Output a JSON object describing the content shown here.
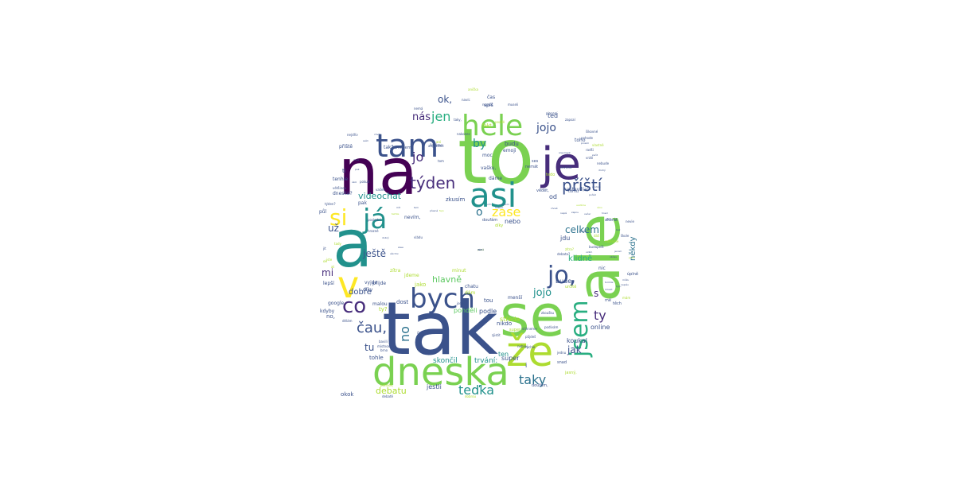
{
  "palette": {
    "dark_purple": "#440154",
    "indigo": "#472d7b",
    "blue": "#3b528b",
    "steel": "#2c728e",
    "teal": "#21918c",
    "sea": "#28ae80",
    "green": "#5ec962",
    "lime": "#addc30",
    "yellow": "#fde725"
  },
  "words": [
    {
      "text": "to",
      "size": 96,
      "color": "#7ad151"
    },
    {
      "text": "tak",
      "size": 92,
      "color": "#3b528b"
    },
    {
      "text": "na",
      "size": 80,
      "color": "#440154"
    },
    {
      "text": "a",
      "size": 82,
      "color": "#21918c"
    },
    {
      "text": "ale",
      "size": 74,
      "color": "#7ad151"
    },
    {
      "text": "se",
      "size": 72,
      "color": "#7ad151"
    },
    {
      "text": "je",
      "size": 56,
      "color": "#472d7b"
    },
    {
      "text": "že",
      "size": 52,
      "color": "#addc30"
    },
    {
      "text": "dneska",
      "size": 48,
      "color": "#7ad151"
    },
    {
      "text": "tam",
      "size": 40,
      "color": "#3b528b"
    },
    {
      "text": "asi",
      "size": 42,
      "color": "#21918c"
    },
    {
      "text": "v",
      "size": 46,
      "color": "#fde725"
    },
    {
      "text": "hele",
      "size": 36,
      "color": "#7ad151"
    },
    {
      "text": "bych",
      "size": 34,
      "color": "#3b528b"
    },
    {
      "text": "já",
      "size": 34,
      "color": "#21918c"
    },
    {
      "text": "jsem",
      "size": 30,
      "color": "#28ae80"
    },
    {
      "text": "jo,",
      "size": 30,
      "color": "#3b528b"
    },
    {
      "text": "si",
      "size": 28,
      "color": "#fde725"
    },
    {
      "text": "co",
      "size": 26,
      "color": "#472d7b"
    },
    {
      "text": "týden",
      "size": 20,
      "color": "#472d7b"
    },
    {
      "text": "příští",
      "size": 20,
      "color": "#3b528b"
    },
    {
      "text": "čau,",
      "size": 18,
      "color": "#3b528b"
    },
    {
      "text": "teďka",
      "size": 16,
      "color": "#21918c"
    },
    {
      "text": "taky",
      "size": 16,
      "color": "#2c728e"
    },
    {
      "text": "zase",
      "size": 16,
      "color": "#fde725"
    },
    {
      "text": "jen",
      "size": 16,
      "color": "#28ae80"
    },
    {
      "text": "jo",
      "size": 16,
      "color": "#472d7b"
    },
    {
      "text": "jojo",
      "size": 14,
      "color": "#3b528b"
    },
    {
      "text": "ty",
      "size": 16,
      "color": "#472d7b"
    },
    {
      "text": "no",
      "size": 16,
      "color": "#2c728e"
    },
    {
      "text": "o",
      "size": 14,
      "color": "#2c728e"
    },
    {
      "text": "by",
      "size": 14,
      "color": "#21918c"
    },
    {
      "text": "jojo",
      "size": 13,
      "color": "#21918c"
    },
    {
      "text": "nás",
      "size": 13,
      "color": "#472d7b"
    },
    {
      "text": "ok,",
      "size": 12,
      "color": "#3b528b"
    },
    {
      "text": "celkem",
      "size": 12,
      "color": "#2c728e"
    },
    {
      "text": "ještě",
      "size": 12,
      "color": "#3b528b"
    },
    {
      "text": "už",
      "size": 12,
      "color": "#3b528b"
    },
    {
      "text": "mi",
      "size": 12,
      "color": "#472d7b"
    },
    {
      "text": "tu",
      "size": 12,
      "color": "#3b528b"
    },
    {
      "text": "jak",
      "size": 12,
      "color": "#3b528b"
    },
    {
      "text": "dobře",
      "size": 10,
      "color": "#3b528b"
    },
    {
      "text": "hlavně",
      "size": 11,
      "color": "#5ec962"
    },
    {
      "text": "videochat",
      "size": 11,
      "color": "#21918c"
    },
    {
      "text": "debatu",
      "size": 11,
      "color": "#addc30"
    },
    {
      "text": "skončil",
      "size": 9,
      "color": "#21918c"
    },
    {
      "text": "trvání:",
      "size": 9,
      "color": "#21918c"
    },
    {
      "text": "klidně",
      "size": 10,
      "color": "#28ae80"
    },
    {
      "text": "někdy",
      "size": 10,
      "color": "#2c728e"
    },
    {
      "text": "s",
      "size": 12,
      "color": "#472d7b"
    },
    {
      "text": "ted",
      "size": 8,
      "color": "#3b528b"
    },
    {
      "text": "od",
      "size": 8,
      "color": "#3b528b"
    },
    {
      "text": "nebo",
      "size": 8,
      "color": "#3b528b"
    },
    {
      "text": "jdu",
      "size": 8,
      "color": "#3b528b"
    },
    {
      "text": "bude",
      "size": 8,
      "color": "#3b528b"
    },
    {
      "text": "online",
      "size": 8,
      "color": "#3b528b"
    },
    {
      "text": "koukal",
      "size": 8,
      "color": "#3b528b"
    },
    {
      "text": "super",
      "size": 8,
      "color": "#3b528b"
    },
    {
      "text": "ten",
      "size": 8,
      "color": "#21918c"
    },
    {
      "text": "i",
      "size": 8,
      "color": "#3b528b"
    },
    {
      "text": "nikdo",
      "size": 7,
      "color": "#3b528b"
    },
    {
      "text": "podle",
      "size": 8,
      "color": "#3b528b"
    },
    {
      "text": "ponděli",
      "size": 8,
      "color": "#5ec962"
    },
    {
      "text": "jako",
      "size": 7,
      "color": "#addc30"
    },
    {
      "text": "tou",
      "size": 7,
      "color": "#3b528b"
    },
    {
      "text": "menší",
      "size": 6,
      "color": "#3b528b"
    },
    {
      "text": "dám",
      "size": 6,
      "color": "#addc30"
    },
    {
      "text": "minut",
      "size": 6,
      "color": "#addc30"
    },
    {
      "text": "chatu",
      "size": 6,
      "color": "#3b528b"
    },
    {
      "text": "středa",
      "size": 8,
      "color": "#addc30"
    },
    {
      "text": "jestli",
      "size": 8,
      "color": "#3b528b"
    },
    {
      "text": "okok",
      "size": 7,
      "color": "#3b528b"
    },
    {
      "text": "tohle",
      "size": 7,
      "color": "#3b528b"
    },
    {
      "text": "lepší",
      "size": 6,
      "color": "#3b528b"
    },
    {
      "text": "kdyby",
      "size": 6,
      "color": "#3b528b"
    },
    {
      "text": "vyjde",
      "size": 6,
      "color": "#3b528b"
    },
    {
      "text": "díky",
      "size": 6,
      "color": "#3b528b"
    },
    {
      "text": "google",
      "size": 6,
      "color": "#3b528b"
    },
    {
      "text": "no,",
      "size": 7,
      "color": "#3b528b"
    },
    {
      "text": "malou",
      "size": 6,
      "color": "#3b528b"
    },
    {
      "text": "ty?",
      "size": 7,
      "color": "#addc30"
    },
    {
      "text": "dost",
      "size": 7,
      "color": "#3b528b"
    },
    {
      "text": "přijde",
      "size": 6,
      "color": "#3b528b"
    },
    {
      "text": "zítra",
      "size": 6,
      "color": "#addc30"
    },
    {
      "text": "jdeme",
      "size": 6,
      "color": "#addc30"
    },
    {
      "text": "nevím,",
      "size": 6,
      "color": "#3b528b"
    },
    {
      "text": "zkusím",
      "size": 7,
      "color": "#3b528b"
    },
    {
      "text": "pak",
      "size": 6,
      "color": "#3b528b"
    },
    {
      "text": "dneska?",
      "size": 6,
      "color": "#3b528b"
    },
    {
      "text": "půl",
      "size": 6,
      "color": "#3b528b"
    },
    {
      "text": "ti",
      "size": 7,
      "color": "#3b528b"
    },
    {
      "text": "tenhle",
      "size": 6,
      "color": "#3b528b"
    },
    {
      "text": "příště",
      "size": 6,
      "color": "#3b528b"
    },
    {
      "text": "takže",
      "size": 6,
      "color": "#3b528b"
    },
    {
      "text": "můžem",
      "size": 5,
      "color": "#3b528b"
    },
    {
      "text": "budu",
      "size": 7,
      "color": "#3b528b"
    },
    {
      "text": "emoji",
      "size": 6,
      "color": "#3b528b"
    },
    {
      "text": "moc",
      "size": 6,
      "color": "#3b528b"
    },
    {
      "text": "čas",
      "size": 6,
      "color": "#3b528b"
    },
    {
      "text": "fakt",
      "size": 6,
      "color": "#addc30"
    },
    {
      "text": "spíš",
      "size": 6,
      "color": "#3b528b"
    },
    {
      "text": "vašku,",
      "size": 6,
      "color": "#3b528b"
    },
    {
      "text": "dáme",
      "size": 6,
      "color": "#3b528b"
    },
    {
      "text": "tedo",
      "size": 5,
      "color": "#addc30"
    },
    {
      "text": "vědět,",
      "size": 5,
      "color": "#3b528b"
    },
    {
      "text": "tomu",
      "size": 5,
      "color": "#3b528b"
    },
    {
      "text": "nastavil(a)",
      "size": 6,
      "color": "#3b528b"
    },
    {
      "text": "toho",
      "size": 6,
      "color": "#3b528b"
    },
    {
      "text": "akorát",
      "size": 5,
      "color": "#3b528b"
    },
    {
      "text": "nic",
      "size": 6,
      "color": "#3b528b"
    },
    {
      "text": "úplně",
      "size": 5,
      "color": "#3b528b"
    },
    {
      "text": "těch",
      "size": 5,
      "color": "#3b528b"
    },
    {
      "text": "mě",
      "size": 5,
      "color": "#3b528b"
    },
    {
      "text": "určitě",
      "size": 5,
      "color": "#addc30"
    },
    {
      "text": "jasný,",
      "size": 5,
      "color": "#addc30"
    },
    {
      "text": "doufám,",
      "size": 5,
      "color": "#3b528b"
    },
    {
      "text": "snad",
      "size": 5,
      "color": "#3b528b"
    },
    {
      "text": "ses",
      "size": 5,
      "color": "#3b528b"
    },
    {
      "text": "nemát",
      "size": 5,
      "color": "#3b528b"
    },
    {
      "text": "díky",
      "size": 5,
      "color": "#addc30"
    },
    {
      "text": "super",
      "size": 5,
      "color": "#addc30"
    },
    {
      "text": "doufám",
      "size": 5,
      "color": "#3b528b"
    },
    {
      "text": "debata?",
      "size": 4,
      "color": "#3b528b"
    },
    {
      "text": "budapešt",
      "size": 4,
      "color": "#3b528b"
    },
    {
      "text": "nevie",
      "size": 4,
      "color": "#3b528b"
    },
    {
      "text": "škole",
      "size": 4,
      "color": "#3b528b"
    },
    {
      "text": "mám",
      "size": 4,
      "color": "#addc30"
    },
    {
      "text": "zítra?",
      "size": 4,
      "color": "#addc30"
    },
    {
      "text": "dáš",
      "size": 4,
      "color": "#addc30"
    },
    {
      "text": "můžeme",
      "size": 4,
      "color": "#addc30"
    },
    {
      "text": "pozdě",
      "size": 4,
      "color": "#addc30"
    },
    {
      "text": "ani",
      "size": 4,
      "color": "#addc30"
    },
    {
      "text": "anglictině",
      "size": 4,
      "color": "#3b528b"
    },
    {
      "text": "tom",
      "size": 4,
      "color": "#3b528b"
    },
    {
      "text": "nebude",
      "size": 4,
      "color": "#3b528b"
    },
    {
      "text": "zapsal",
      "size": 4,
      "color": "#3b528b"
    },
    {
      "text": "šikovné",
      "size": 4,
      "color": "#3b528b"
    },
    {
      "text": "pohode",
      "size": 4,
      "color": "#3b528b"
    },
    {
      "text": "navíc",
      "size": 4,
      "color": "#3b528b"
    },
    {
      "text": "taky,",
      "size": 4,
      "color": "#3b528b"
    },
    {
      "text": "nakonec",
      "size": 4,
      "color": "#3b528b"
    },
    {
      "text": "poslední",
      "size": 4,
      "color": "#3b528b"
    },
    {
      "text": "hrozně",
      "size": 4,
      "color": "#3b528b"
    },
    {
      "text": "vrátí",
      "size": 4,
      "color": "#3b528b"
    },
    {
      "text": "zavolat",
      "size": 4,
      "color": "#3b528b"
    },
    {
      "text": "většinou",
      "size": 4,
      "color": "#3b528b"
    },
    {
      "text": "dělám",
      "size": 4,
      "color": "#3b528b"
    },
    {
      "text": "bavili",
      "size": 4,
      "color": "#3b528b"
    },
    {
      "text": "místnost",
      "size": 4,
      "color": "#3b528b"
    },
    {
      "text": "brno",
      "size": 4,
      "color": "#3b528b"
    },
    {
      "text": "čekáme",
      "size": 4,
      "color": "#3b528b"
    },
    {
      "text": "museli",
      "size": 4,
      "color": "#3b528b"
    },
    {
      "text": "placení",
      "size": 4,
      "color": "#3b528b"
    },
    {
      "text": "napsal",
      "size": 4,
      "color": "#3b528b"
    },
    {
      "text": "vládu",
      "size": 4,
      "color": "#3b528b"
    },
    {
      "text": "pohodě,",
      "size": 4,
      "color": "#addc30"
    },
    {
      "text": "jsem,",
      "size": 4,
      "color": "#3b528b"
    },
    {
      "text": "zjistit",
      "size": 4,
      "color": "#3b528b"
    },
    {
      "text": "stihneme",
      "size": 4,
      "color": "#3b528b"
    },
    {
      "text": "zkoušku",
      "size": 4,
      "color": "#3b528b"
    },
    {
      "text": "podívám",
      "size": 4,
      "color": "#3b528b"
    },
    {
      "text": "půjdeš",
      "size": 4,
      "color": "#3b528b"
    },
    {
      "text": "rychle",
      "size": 4,
      "color": "#3b528b"
    },
    {
      "text": "jednu",
      "size": 4,
      "color": "#3b528b"
    },
    {
      "text": "debatě",
      "size": 4,
      "color": "#3b528b"
    },
    {
      "text": "dobrou",
      "size": 4,
      "color": "#addc30"
    },
    {
      "text": "nebavi,",
      "size": 4,
      "color": "#3b528b"
    },
    {
      "text": "čeká",
      "size": 4,
      "color": "#3b528b"
    },
    {
      "text": "vašek",
      "size": 4,
      "color": "#3b528b"
    },
    {
      "text": "pokud",
      "size": 4,
      "color": "#3b528b"
    },
    {
      "text": "tady",
      "size": 4,
      "color": "#addc30"
    },
    {
      "text": "jít",
      "size": 4,
      "color": "#3b528b"
    },
    {
      "text": "ok",
      "size": 4,
      "color": "#addc30"
    },
    {
      "text": "jste",
      "size": 4,
      "color": "#addc30"
    },
    {
      "text": "at",
      "size": 4,
      "color": "#addc30"
    },
    {
      "text": "týden?",
      "size": 4,
      "color": "#3b528b"
    },
    {
      "text": "nemá",
      "size": 4,
      "color": "#3b528b"
    },
    {
      "text": "nejdřív",
      "size": 4,
      "color": "#3b528b"
    },
    {
      "text": "anička",
      "size": 4,
      "color": "#addc30"
    },
    {
      "text": "radši",
      "size": 4,
      "color": "#3b528b"
    },
    {
      "text": "vlastně",
      "size": 4,
      "color": "#addc30"
    },
    {
      "text": "argument",
      "size": 3,
      "color": "#3b528b"
    },
    {
      "text": "druhou",
      "size": 3,
      "color": "#3b528b"
    },
    {
      "text": "druhý",
      "size": 3,
      "color": "#3b528b"
    },
    {
      "text": "tomhle",
      "size": 3,
      "color": "#3b528b"
    },
    {
      "text": "můžu",
      "size": 3,
      "color": "#3b528b"
    },
    {
      "text": "napišu",
      "size": 3,
      "color": "#3b528b"
    },
    {
      "text": "tyjo,",
      "size": 3,
      "color": "#3b528b"
    },
    {
      "text": "prosím",
      "size": 3,
      "color": "#3b528b"
    },
    {
      "text": "začít",
      "size": 3,
      "color": "#3b528b"
    },
    {
      "text": "pořád",
      "size": 3,
      "color": "#3b528b"
    },
    {
      "text": "hned",
      "size": 3,
      "color": "#3b528b"
    },
    {
      "text": "prej",
      "size": 3,
      "color": "#3b528b"
    },
    {
      "text": "bez",
      "size": 3,
      "color": "#3b528b"
    },
    {
      "text": "jenom",
      "size": 3,
      "color": "#3b528b"
    },
    {
      "text": "pošlu",
      "size": 3,
      "color": "#addc30"
    },
    {
      "text": "mluvit",
      "size": 3,
      "color": "#3b528b"
    },
    {
      "text": "občas",
      "size": 3,
      "color": "#3b528b"
    },
    {
      "text": "večer",
      "size": 3,
      "color": "#3b528b"
    },
    {
      "text": "ráno",
      "size": 3,
      "color": "#addc30"
    },
    {
      "text": "hodinu",
      "size": 3,
      "color": "#3b528b"
    },
    {
      "text": "zapnu",
      "size": 3,
      "color": "#3b528b"
    },
    {
      "text": "vidím",
      "size": 3,
      "color": "#3b528b"
    },
    {
      "text": "napiš",
      "size": 3,
      "color": "#3b528b"
    },
    {
      "text": "uvidíme",
      "size": 3,
      "color": "#addc30"
    },
    {
      "text": "chceš",
      "size": 3,
      "color": "#3b528b"
    },
    {
      "text": "potom",
      "size": 3,
      "color": "#3b528b"
    },
    {
      "text": "hotovo",
      "size": 3,
      "color": "#3b528b"
    },
    {
      "text": "vím",
      "size": 3,
      "color": "#3b528b"
    },
    {
      "text": "fajn",
      "size": 3,
      "color": "#addc30"
    },
    {
      "text": "přesně",
      "size": 3,
      "color": "#3b528b"
    },
    {
      "text": "tam",
      "size": 3,
      "color": "#3b528b"
    },
    {
      "text": "mít",
      "size": 3,
      "color": "#3b528b"
    },
    {
      "text": "takhle",
      "size": 3,
      "color": "#addc30"
    },
    {
      "text": "dobrý",
      "size": 3,
      "color": "#3b528b"
    },
    {
      "text": "všichni",
      "size": 3,
      "color": "#3b528b"
    },
    {
      "text": "zase",
      "size": 3,
      "color": "#3b528b"
    },
    {
      "text": "dnes",
      "size": 3,
      "color": "#3b528b"
    },
    {
      "text": "pak",
      "size": 3,
      "color": "#3b528b"
    },
    {
      "text": "úkol",
      "size": 3,
      "color": "#3b528b"
    },
    {
      "text": "sešli",
      "size": 3,
      "color": "#3b528b"
    },
    {
      "text": "chvíli",
      "size": 3,
      "color": "#3b528b"
    },
    {
      "text": "jasně",
      "size": 3,
      "color": "#addc30"
    },
    {
      "text": "cestě",
      "size": 3,
      "color": "#3b528b"
    },
    {
      "text": "dát",
      "size": 3,
      "color": "#3b528b"
    },
    {
      "text": "dal",
      "size": 3,
      "color": "#3b528b"
    }
  ]
}
